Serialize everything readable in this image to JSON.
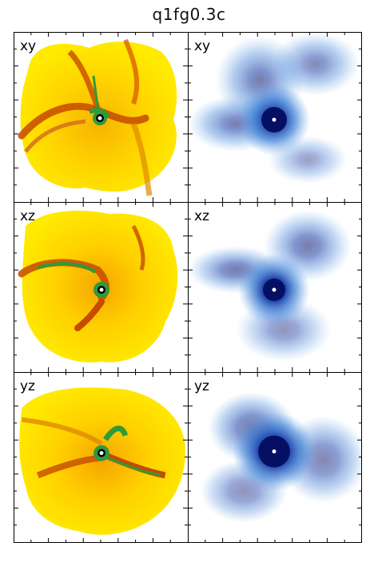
{
  "figure": {
    "title": "q1fg0.3c"
  },
  "panels": [
    {
      "label": "xy",
      "kind": "gas-density"
    },
    {
      "label": "xy",
      "kind": "star-particles"
    },
    {
      "label": "xz",
      "kind": "gas-density"
    },
    {
      "label": "xz",
      "kind": "star-particles"
    },
    {
      "label": "yz",
      "kind": "gas-density"
    },
    {
      "label": "yz",
      "kind": "star-particles"
    }
  ],
  "colors": {
    "gas_outer": "#ffe600",
    "gas_mid": "#f2a200",
    "gas_dense": "#c64a00",
    "gas_core": "#2f9a3a",
    "stars_sparse": "#3a7fd6",
    "stars_dense": "#08136b",
    "center_marker": "#ffffff"
  }
}
